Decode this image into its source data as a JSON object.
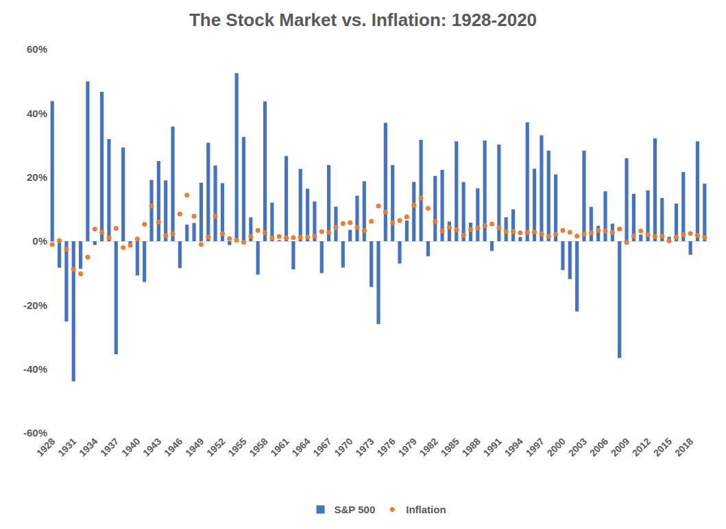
{
  "chart_data": {
    "type": "bar",
    "title": "The Stock Market vs. Inflation: 1928-2020",
    "categories": [
      "1928",
      null,
      null,
      "1931",
      null,
      null,
      "1934",
      null,
      null,
      "1937",
      null,
      null,
      "1940",
      null,
      null,
      "1943",
      null,
      null,
      "1946",
      null,
      null,
      "1949",
      null,
      null,
      "1952",
      null,
      null,
      "1955",
      null,
      null,
      "1958",
      null,
      null,
      "1961",
      null,
      null,
      "1964",
      null,
      null,
      "1967",
      null,
      null,
      "1970",
      null,
      null,
      "1973",
      null,
      null,
      "1976",
      null,
      null,
      "1979",
      null,
      null,
      "1982",
      null,
      null,
      "1985",
      null,
      null,
      "1988",
      null,
      null,
      "1991",
      null,
      null,
      "1994",
      null,
      null,
      "1997",
      null,
      null,
      "2000",
      null,
      null,
      "2003",
      null,
      null,
      "2006",
      null,
      null,
      "2009",
      null,
      null,
      "2012",
      null,
      null,
      "2015",
      null,
      null,
      "2018",
      null,
      null
    ],
    "series": [
      {
        "name": "S&P 500",
        "type": "bar",
        "color": "#4472C4",
        "values": [
          43.81,
          -8.3,
          -25.12,
          -43.84,
          -8.64,
          49.98,
          -1.19,
          46.74,
          31.94,
          -35.34,
          29.28,
          -1.1,
          -10.67,
          -12.77,
          19.17,
          25.06,
          19.03,
          35.82,
          -8.43,
          5.2,
          5.7,
          18.3,
          30.81,
          23.68,
          18.15,
          -1.21,
          52.56,
          32.6,
          7.44,
          -10.46,
          43.72,
          12.06,
          0.34,
          26.64,
          -8.81,
          22.61,
          16.42,
          12.4,
          -9.97,
          23.8,
          10.81,
          -8.24,
          3.56,
          14.22,
          18.76,
          -14.31,
          -25.9,
          37.0,
          23.83,
          -6.98,
          6.51,
          18.52,
          31.74,
          -4.7,
          20.42,
          22.34,
          6.15,
          31.24,
          18.49,
          5.81,
          16.54,
          31.48,
          -3.06,
          30.23,
          7.49,
          9.97,
          1.33,
          37.2,
          22.68,
          33.1,
          28.34,
          20.89,
          -9.03,
          -11.85,
          -21.97,
          28.36,
          10.74,
          4.83,
          15.61,
          5.48,
          -36.55,
          25.94,
          14.82,
          2.1,
          15.89,
          32.15,
          13.52,
          1.38,
          11.77,
          21.61,
          -4.23,
          31.21,
          18.02
        ]
      },
      {
        "name": "Inflation",
        "type": "scatter",
        "marker": "circle",
        "color": "#ED7D31",
        "values": [
          -1.0,
          0.2,
          -2.5,
          -8.8,
          -10.2,
          -5.0,
          3.8,
          2.8,
          1.0,
          4.0,
          -2.0,
          -1.3,
          0.7,
          5.3,
          11.0,
          6.0,
          1.7,
          2.3,
          8.5,
          14.4,
          7.8,
          -1.0,
          1.3,
          7.9,
          2.3,
          0.8,
          0.3,
          -0.3,
          1.5,
          3.4,
          2.7,
          1.0,
          1.5,
          1.0,
          1.1,
          1.2,
          1.3,
          1.6,
          3.0,
          2.8,
          4.3,
          5.5,
          5.8,
          4.3,
          3.3,
          6.2,
          11.0,
          9.1,
          5.8,
          6.5,
          7.6,
          11.3,
          13.5,
          10.3,
          6.2,
          3.2,
          4.3,
          3.6,
          1.9,
          3.7,
          4.1,
          4.8,
          5.4,
          4.2,
          3.0,
          3.0,
          2.6,
          2.8,
          2.9,
          2.3,
          1.5,
          2.2,
          3.4,
          2.8,
          1.6,
          2.3,
          2.7,
          3.4,
          3.2,
          2.8,
          3.8,
          -0.4,
          1.6,
          3.2,
          2.1,
          1.5,
          1.6,
          0.1,
          1.3,
          2.1,
          2.4,
          1.8,
          1.2
        ]
      }
    ],
    "ylim": [
      -60,
      60
    ],
    "yticks": [
      {
        "value": -60,
        "label": "-60%"
      },
      {
        "value": -40,
        "label": "-40%"
      },
      {
        "value": -20,
        "label": "-20%"
      },
      {
        "value": 0,
        "label": "0%"
      },
      {
        "value": 20,
        "label": "20%"
      },
      {
        "value": 40,
        "label": "40%"
      },
      {
        "value": 60,
        "label": "60%"
      }
    ],
    "grid": false,
    "legend": "bottom"
  }
}
